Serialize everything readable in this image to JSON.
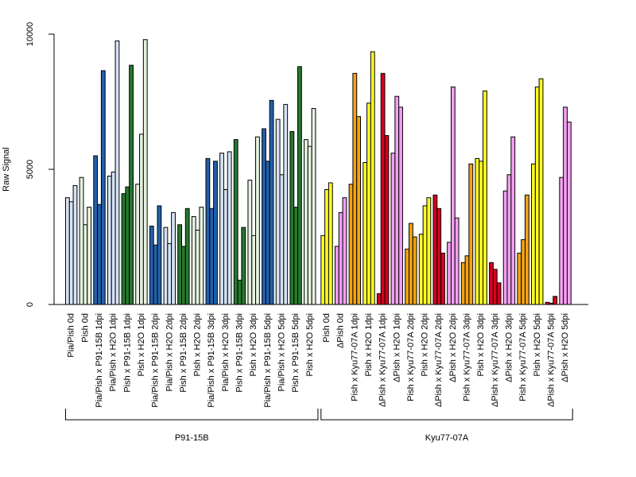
{
  "chart_data": {
    "type": "bar",
    "ylabel": "Raw Signal",
    "ylim": [
      0,
      10000
    ],
    "yticks": [
      0,
      5000,
      10000
    ],
    "colors": {
      "lightblue": "#d6e3f5",
      "lightgreen": "#e6f2e0",
      "blue": "#2161ad",
      "green": "#26792f",
      "yellow": "#ffff24",
      "pink": "#f4a0f2",
      "orange": "#f5a313",
      "red": "#d8001f"
    },
    "groups": [
      {
        "label": "P91-15B",
        "categories": [
          {
            "label": "Pia/Pish 0d",
            "color": "lightblue",
            "values": [
              3950,
              3800,
              4400
            ]
          },
          {
            "label": "Pish 0d",
            "color": "lightgreen",
            "values": [
              4700,
              2950,
              3600
            ]
          },
          {
            "label": "Pia/Pish x P91-15B 1dpi",
            "color": "blue",
            "values": [
              5500,
              3700,
              8650
            ]
          },
          {
            "label": "Pia/Pish x H2O 1dpi",
            "color": "lightblue",
            "values": [
              4750,
              4900,
              9750
            ]
          },
          {
            "label": "Pish x P91-15B 1dpi",
            "color": "green",
            "values": [
              4100,
              4350,
              8850
            ]
          },
          {
            "label": "Pish x H2O 1dpi",
            "color": "lightgreen",
            "values": [
              4450,
              6300,
              9800
            ]
          },
          {
            "label": "Pia/Pish x P91-15B 2dpi",
            "color": "blue",
            "values": [
              2900,
              2200,
              3650
            ]
          },
          {
            "label": "Pia/Pish x H2O 2dpi",
            "color": "lightblue",
            "values": [
              2850,
              2250,
              3400
            ]
          },
          {
            "label": "Pish x P91-15B 2dpi",
            "color": "green",
            "values": [
              2950,
              2150,
              3550
            ]
          },
          {
            "label": "Pish x H2O 2dpi",
            "color": "lightgreen",
            "values": [
              3250,
              2750,
              3600
            ]
          },
          {
            "label": "Pia/Pish x P91-15B 3dpi",
            "color": "blue",
            "values": [
              5400,
              3550,
              5300
            ]
          },
          {
            "label": "Pia/Pish x H2O 3dpi",
            "color": "lightblue",
            "values": [
              5600,
              4250,
              5650
            ]
          },
          {
            "label": "Pish x P91-15B 3dpi",
            "color": "green",
            "values": [
              6100,
              900,
              2850
            ]
          },
          {
            "label": "Pish x H2O 3dpi",
            "color": "lightgreen",
            "values": [
              4600,
              2550,
              6200
            ]
          },
          {
            "label": "Pia/Pish x P91-15B 5dpi",
            "color": "blue",
            "values": [
              6500,
              5300,
              7550
            ]
          },
          {
            "label": "Pia/Pish x H2O 5dpi",
            "color": "lightblue",
            "values": [
              6850,
              4800,
              7400
            ]
          },
          {
            "label": "Pish x P91-15B 5dpi",
            "color": "green",
            "values": [
              6400,
              3600,
              8800
            ]
          },
          {
            "label": "Pish x H2O 5dpi",
            "color": "lightgreen",
            "values": [
              6100,
              5850,
              7250
            ]
          }
        ]
      },
      {
        "label": "Kyu77-07A",
        "categories": [
          {
            "label": "Pish 0d",
            "color": "yellow",
            "values": [
              2550,
              4250,
              4500
            ]
          },
          {
            "label": "ΔPish 0d",
            "color": "pink",
            "values": [
              2150,
              3400,
              3950
            ]
          },
          {
            "label": "Pish x Kyu77-07A 1dpi",
            "color": "orange",
            "values": [
              4450,
              8550,
              6950
            ]
          },
          {
            "label": "Pish x H2O 1dpi",
            "color": "yellow",
            "values": [
              5250,
              7450,
              9350
            ]
          },
          {
            "label": "ΔPish x Kyu77-07A 1dpi",
            "color": "red",
            "values": [
              400,
              8550,
              6250
            ]
          },
          {
            "label": "ΔPish x H2O 1dpi",
            "color": "pink",
            "values": [
              5600,
              7700,
              7300
            ]
          },
          {
            "label": "Pish x Kyu77-07A 2dpi",
            "color": "orange",
            "values": [
              2050,
              3000,
              2500
            ]
          },
          {
            "label": "Pish x H2O 2dpi",
            "color": "yellow",
            "values": [
              2600,
              3650,
              3950
            ]
          },
          {
            "label": "ΔPish x Kyu77-07A 2dpi",
            "color": "red",
            "values": [
              4050,
              3550,
              1900
            ]
          },
          {
            "label": "ΔPish x H2O 2dpi",
            "color": "pink",
            "values": [
              2300,
              8050,
              3200
            ]
          },
          {
            "label": "Pish x Kyu77-07A 3dpi",
            "color": "orange",
            "values": [
              1550,
              1800,
              5200
            ]
          },
          {
            "label": "Pish x H2O 3dpi",
            "color": "yellow",
            "values": [
              5400,
              5300,
              7900
            ]
          },
          {
            "label": "ΔPish x Kyu77-07A 3dpi",
            "color": "red",
            "values": [
              1550,
              1300,
              800
            ]
          },
          {
            "label": "ΔPish x H2O 3dpi",
            "color": "pink",
            "values": [
              4200,
              4800,
              6200
            ]
          },
          {
            "label": "Pish x Kyu77-07A 5dpi",
            "color": "orange",
            "values": [
              1900,
              2400,
              4050
            ]
          },
          {
            "label": "Pish x H2O 5dpi",
            "color": "yellow",
            "values": [
              5200,
              8050,
              8350
            ]
          },
          {
            "label": "ΔPish x Kyu77-07A 5dpi",
            "color": "red",
            "values": [
              80,
              50,
              300
            ]
          },
          {
            "label": "ΔPish x H2O 5dpi",
            "color": "pink",
            "values": [
              4700,
              7300,
              6750
            ]
          }
        ]
      }
    ]
  }
}
